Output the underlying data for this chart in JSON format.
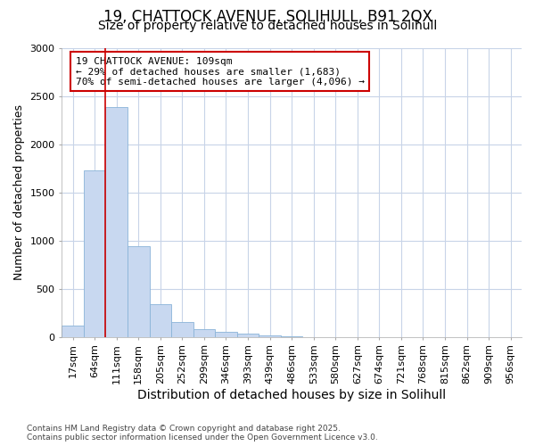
{
  "title_line1": "19, CHATTOCK AVENUE, SOLIHULL, B91 2QX",
  "title_line2": "Size of property relative to detached houses in Solihull",
  "xlabel": "Distribution of detached houses by size in Solihull",
  "ylabel": "Number of detached properties",
  "bar_labels": [
    "17sqm",
    "64sqm",
    "111sqm",
    "158sqm",
    "205sqm",
    "252sqm",
    "299sqm",
    "346sqm",
    "393sqm",
    "439sqm",
    "486sqm",
    "533sqm",
    "580sqm",
    "627sqm",
    "674sqm",
    "721sqm",
    "768sqm",
    "815sqm",
    "862sqm",
    "909sqm",
    "956sqm"
  ],
  "bar_values": [
    120,
    1730,
    2390,
    940,
    340,
    155,
    80,
    50,
    35,
    20,
    5,
    0,
    0,
    0,
    0,
    0,
    0,
    0,
    0,
    0,
    0
  ],
  "bar_color": "#c8d8f0",
  "bar_edgecolor": "#8ab4d8",
  "vline_x_index": 2,
  "vline_color": "#cc0000",
  "ylim": [
    0,
    3000
  ],
  "yticks": [
    0,
    500,
    1000,
    1500,
    2000,
    2500,
    3000
  ],
  "annotation_text": "19 CHATTOCK AVENUE: 109sqm\n← 29% of detached houses are smaller (1,683)\n70% of semi-detached houses are larger (4,096) →",
  "annotation_box_facecolor": "#ffffff",
  "annotation_box_edgecolor": "#cc0000",
  "footer_line1": "Contains HM Land Registry data © Crown copyright and database right 2025.",
  "footer_line2": "Contains public sector information licensed under the Open Government Licence v3.0.",
  "bg_color": "#ffffff",
  "grid_color": "#c8d4e8",
  "title_fontsize": 12,
  "subtitle_fontsize": 10,
  "tick_fontsize": 8,
  "ylabel_fontsize": 9,
  "xlabel_fontsize": 10
}
